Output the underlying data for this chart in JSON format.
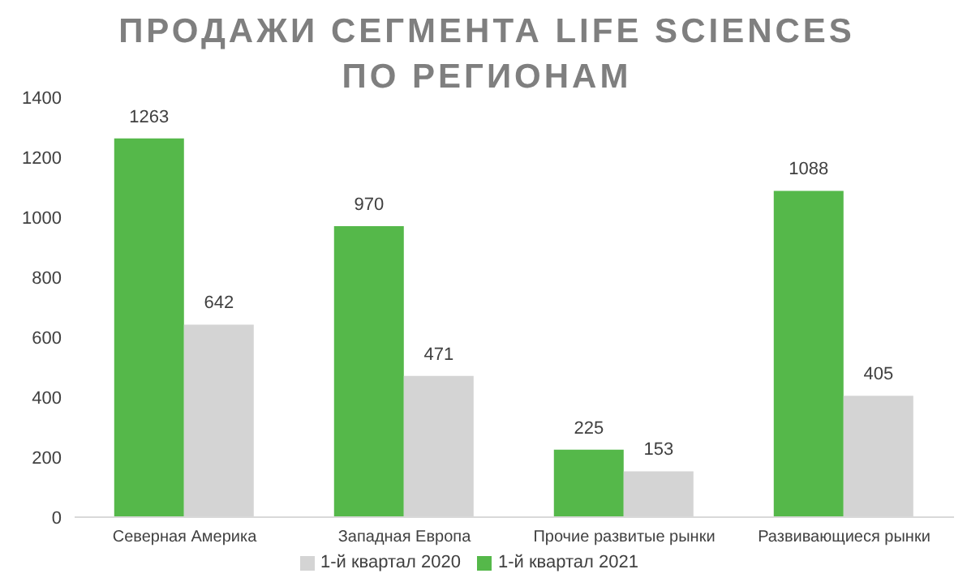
{
  "chart_data": {
    "type": "bar",
    "title": "ПРОДАЖИ СЕГМЕНТА LIFE SCIENCES ПО РЕГИОНАМ",
    "categories": [
      "Северная Америка",
      "Западная Европа",
      "Прочие развитые рынки",
      "Развивающиеся рынки"
    ],
    "series": [
      {
        "name": "1-й квартал 2021",
        "color": "#55b84a",
        "values": [
          1263,
          970,
          225,
          1088
        ]
      },
      {
        "name": "1-й квартал 2020",
        "color": "#d4d4d4",
        "values": [
          642,
          471,
          153,
          405
        ]
      }
    ],
    "ylim": [
      0,
      1400
    ],
    "yticks": [
      0,
      200,
      400,
      600,
      800,
      1000,
      1200,
      1400
    ],
    "data_labels": true,
    "legend": "bottom"
  }
}
